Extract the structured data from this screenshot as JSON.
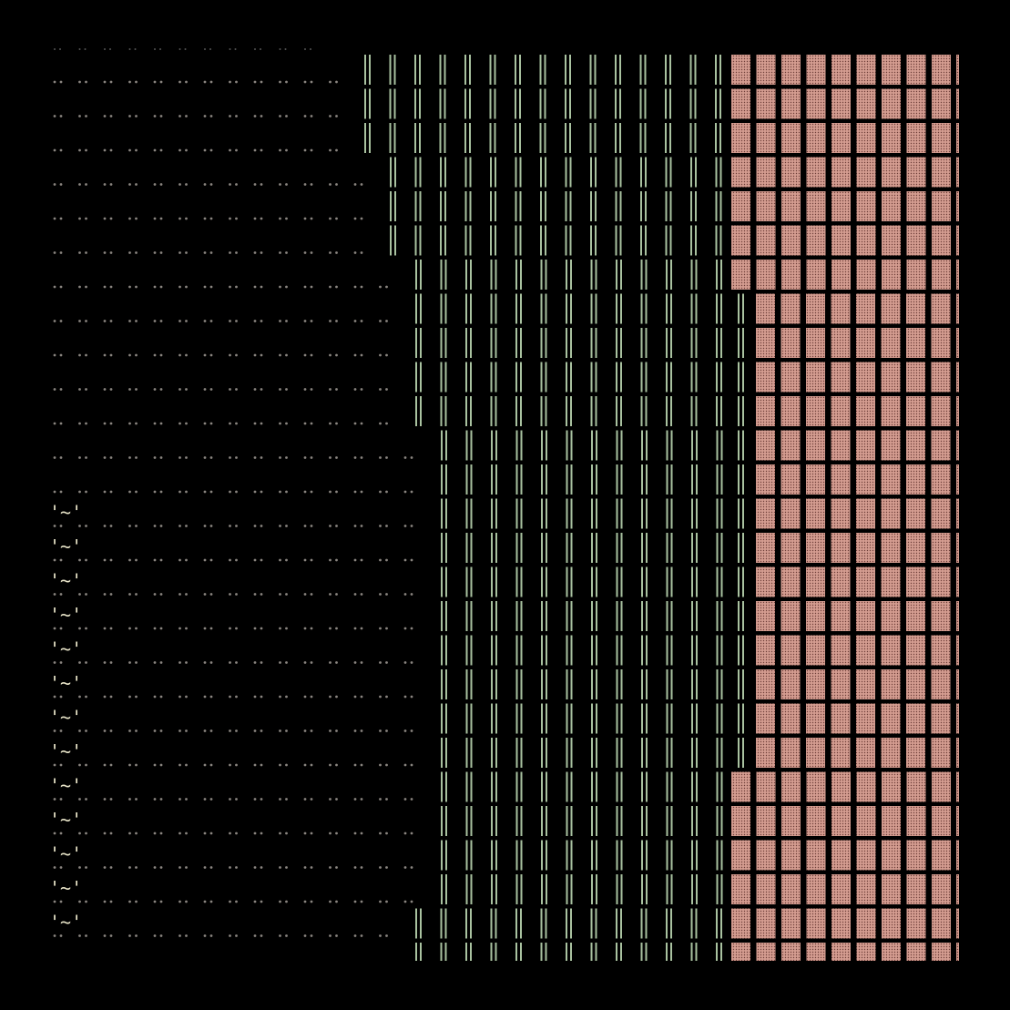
{
  "glyph": "'~'"
}
